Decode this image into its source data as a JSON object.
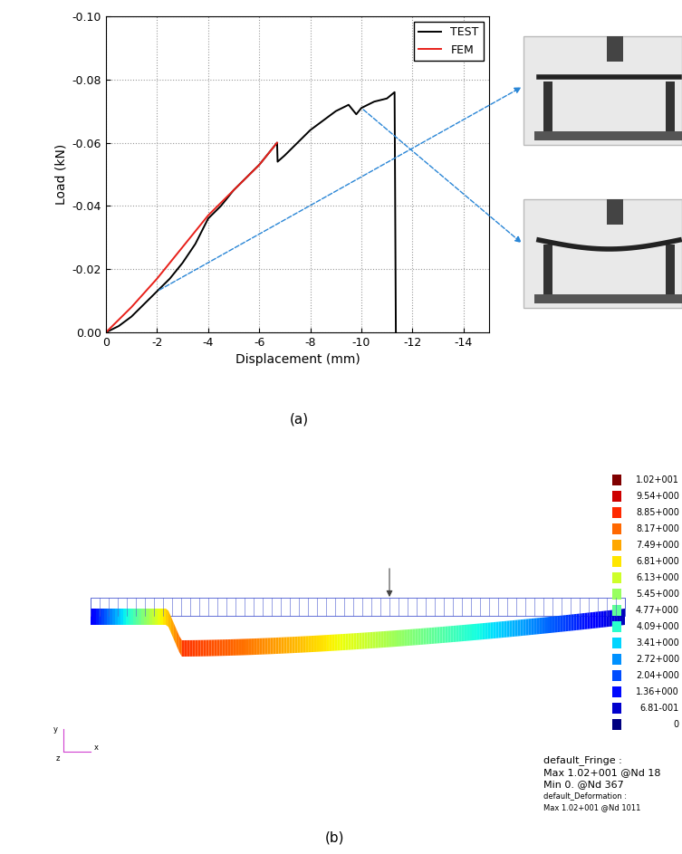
{
  "chart_data": {
    "type": "line",
    "x_label": "Displacement (mm)",
    "y_label": "Load (kN)",
    "xlim": [
      0,
      -15
    ],
    "xticks": [
      0,
      -2,
      -4,
      -6,
      -8,
      -10,
      -12,
      -14
    ],
    "ylim": [
      0,
      -0.1
    ],
    "yticks": [
      {
        "value": 0,
        "label": "0.00"
      },
      {
        "value": -0.02,
        "label": "-0.02"
      },
      {
        "value": -0.04,
        "label": "-0.04"
      },
      {
        "value": -0.06,
        "label": "-0.06"
      },
      {
        "value": -0.08,
        "label": "-0.08"
      },
      {
        "value": -0.1,
        "label": "-0.10"
      }
    ],
    "grid": true,
    "legend": "upper right",
    "series": [
      {
        "name": "TEST",
        "color": "#000000",
        "x": [
          0,
          -0.5,
          -1,
          -1.5,
          -2,
          -2.5,
          -3,
          -3.5,
          -4,
          -4.5,
          -5,
          -5.5,
          -6,
          -6.5,
          -6.7,
          -6.72,
          -7,
          -7.5,
          -8,
          -8.5,
          -9,
          -9.5,
          -9.8,
          -10,
          -10.5,
          -11,
          -11.3,
          -11.35
        ],
        "values": [
          0,
          -0.002,
          -0.005,
          -0.009,
          -0.013,
          -0.017,
          -0.022,
          -0.028,
          -0.036,
          -0.04,
          -0.045,
          -0.049,
          -0.053,
          -0.058,
          -0.06,
          -0.054,
          -0.056,
          -0.06,
          -0.064,
          -0.067,
          -0.07,
          -0.072,
          -0.069,
          -0.071,
          -0.073,
          -0.074,
          -0.076,
          0.0
        ]
      },
      {
        "name": "FEM",
        "color": "#e8201a",
        "x": [
          0,
          -1,
          -2,
          -3,
          -4,
          -5,
          -6,
          -6.7
        ],
        "values": [
          0,
          -0.008,
          -0.017,
          -0.027,
          -0.037,
          -0.045,
          -0.053,
          -0.06
        ]
      }
    ]
  },
  "chart_caption": "(a)",
  "fem_plot": {
    "caption": "(b)",
    "fringe_levels": [
      "1.02+001",
      "9.54+000",
      "8.85+000",
      "8.17+000",
      "7.49+000",
      "6.81+000",
      "6.13+000",
      "5.45+000",
      "4.77+000",
      "4.09+000",
      "3.41+000",
      "2.72+000",
      "2.04+000",
      "1.36+000",
      "6.81-001",
      "0"
    ],
    "fringe_title": "default_Fringe :",
    "max_label": "Max 1.02+001 @Nd 18",
    "min_label": "Min 0. @Nd 367",
    "deformation_title": "default_Deformation :",
    "deformation_max": "Max 1.02+001 @Nd 1011",
    "axis_labels": [
      "y",
      "x",
      "z"
    ]
  }
}
